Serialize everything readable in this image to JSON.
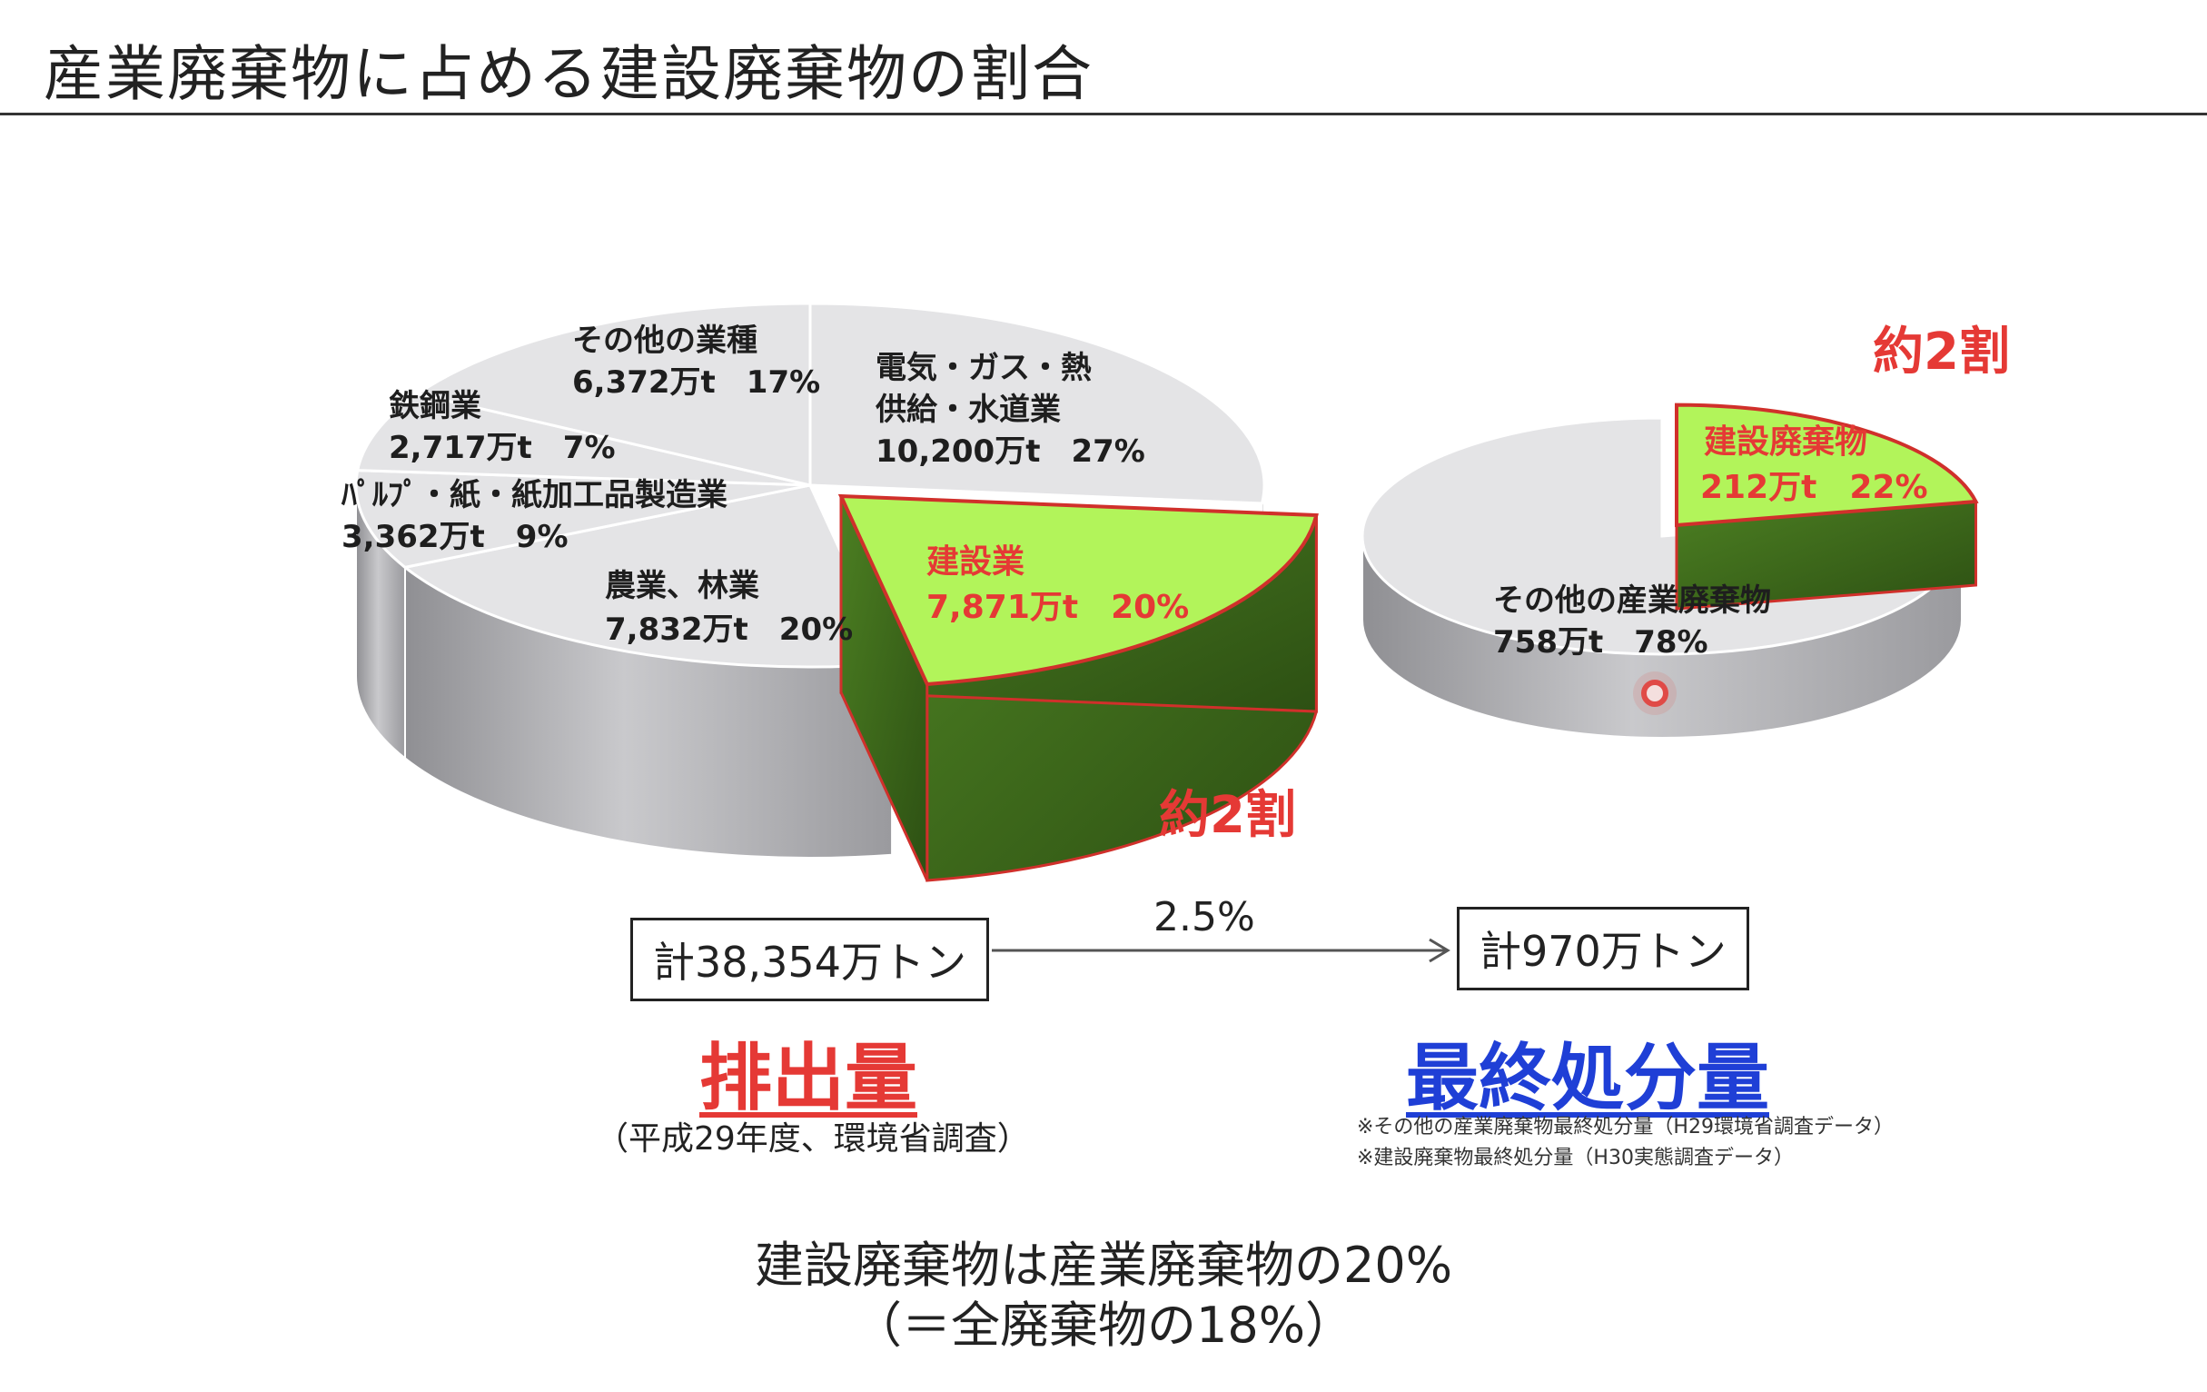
{
  "page": {
    "title": "産業廃棄物に占める建設廃棄物の割合"
  },
  "chart_data": [
    {
      "type": "pie",
      "title": "排出量",
      "total_label": "計38,354万トン",
      "source_note": "（平成29年度、環境省調査）",
      "approx_label": "約2割",
      "slices": [
        {
          "name": "電気・ガス・熱供給・水道業",
          "line1": "電気・ガス・熱",
          "line2": "供給・水道業",
          "value_label": "10,200万t　27%",
          "value": 10200,
          "percent": 27,
          "highlight": false
        },
        {
          "name": "建設業",
          "line1": "建設業",
          "line2": "",
          "value_label": "7,871万t　20%",
          "value": 7871,
          "percent": 20,
          "highlight": true
        },
        {
          "name": "農業、林業",
          "line1": "農業、林業",
          "line2": "",
          "value_label": "7,832万t　20%",
          "value": 7832,
          "percent": 20,
          "highlight": false
        },
        {
          "name": "パルプ・紙・紙加工品製造業",
          "line1": "ﾊﾟﾙﾌﾟ・紙・紙加工品製造業",
          "line2": "",
          "value_label": "3,362万t　9%",
          "value": 3362,
          "percent": 9,
          "highlight": false
        },
        {
          "name": "鉄鋼業",
          "line1": "鉄鋼業",
          "line2": "",
          "value_label": "2,717万t　7%",
          "value": 2717,
          "percent": 7,
          "highlight": false
        },
        {
          "name": "その他の業種",
          "line1": "その他の業種",
          "line2": "",
          "value_label": "6,372万t　17%",
          "value": 6372,
          "percent": 17,
          "highlight": false
        }
      ]
    },
    {
      "type": "pie",
      "title": "最終処分量",
      "total_label": "計970万トン",
      "approx_label": "約2割",
      "source_notes": [
        "※その他の産業廃棄物最終処分量（H29環境省調査データ）",
        "※建設廃棄物最終処分量（H30実態調査データ）"
      ],
      "slices": [
        {
          "name": "建設廃棄物",
          "line1": "建設廃棄物",
          "value_label": "212万t　22%",
          "value": 212,
          "percent": 22,
          "highlight": true
        },
        {
          "name": "その他の産業廃棄物",
          "line1": "その他の産業廃棄物",
          "value_label": "758万t　78%",
          "value": 758,
          "percent": 78,
          "highlight": false
        }
      ]
    }
  ],
  "flow": {
    "ratio_label": "2.5%"
  },
  "summary": {
    "line1": "建設廃棄物は産業廃棄物の20%",
    "line2": "（＝全廃棄物の18%）"
  },
  "colors": {
    "slice_fill": "#e4e4e6",
    "slice_side": "#a9a9ad",
    "highlight_fill": "#b2f45a",
    "highlight_side": "#3b6a1c",
    "highlight_stroke": "#d0302b",
    "red": "#e53935",
    "blue": "#1f3fd6"
  }
}
